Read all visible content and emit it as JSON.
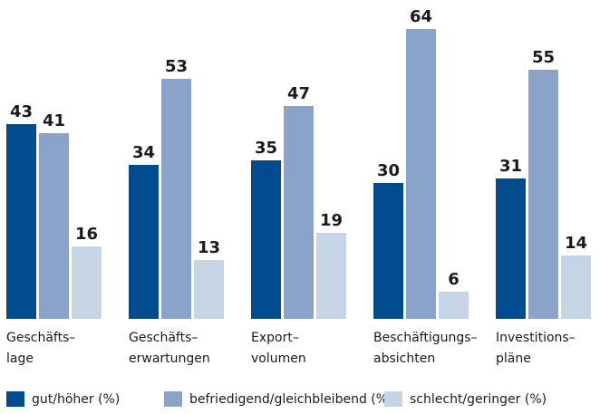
{
  "chart_data": {
    "type": "bar",
    "categories": [
      "Geschäfts–\nlage",
      "Geschäfts–\nerwartungen",
      "Export–\nvolumen",
      "Beschäftigungs–\nabsichten",
      "Investitions–\npläne"
    ],
    "series": [
      {
        "name": "gut/höher (%)",
        "color": "#004b8d",
        "values": [
          43,
          34,
          35,
          30,
          31
        ]
      },
      {
        "name": "befriedigend/gleichbleibend (%)",
        "color": "#8aa3c8",
        "values": [
          41,
          53,
          47,
          64,
          55
        ]
      },
      {
        "name": "schlecht/geringer (%)",
        "color": "#c5d5e6",
        "values": [
          16,
          13,
          19,
          6,
          14
        ]
      }
    ],
    "ylim": [
      0,
      64
    ]
  }
}
